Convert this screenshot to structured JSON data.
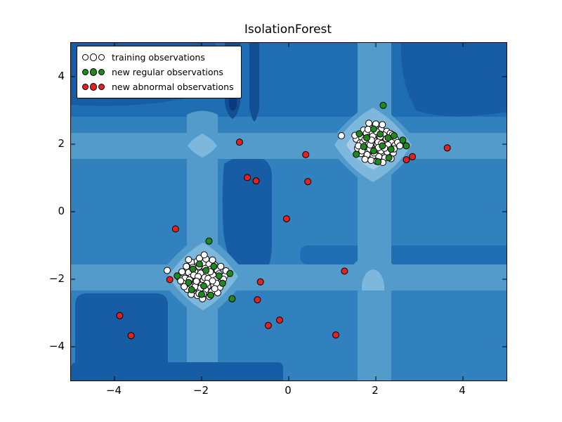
{
  "title": "IsolationForest",
  "legend": {
    "items": [
      {
        "label": "training observations",
        "color": "#ffffff"
      },
      {
        "label": "new regular observations",
        "color": "#1c8a1c"
      },
      {
        "label": "new abnormal observations",
        "color": "#e62020"
      }
    ]
  },
  "marker": {
    "edge_color": "#000000",
    "radius": 4.5
  },
  "chart_data": {
    "type": "scatter",
    "title": "IsolationForest",
    "xlim": [
      -5,
      5
    ],
    "ylim": [
      -5,
      5
    ],
    "xticks": [
      -4,
      -2,
      0,
      2,
      4
    ],
    "yticks": [
      -4,
      -2,
      0,
      2,
      4
    ],
    "xtick_labels": [
      "−4",
      "−2",
      "0",
      "2",
      "4"
    ],
    "ytick_labels": [
      "−4",
      "−2",
      "0",
      "2",
      "4"
    ],
    "grid": false,
    "legend_position": "upper left",
    "background": {
      "kind": "contourf of IsolationForest decision function",
      "colormap": "Blues_r",
      "palette": [
        "#0a3a7e",
        "#114e94",
        "#175da6",
        "#1f6db2",
        "#3081bd",
        "#529bcb",
        "#7db8dc",
        "#a9cfe7",
        "#cfe2f2"
      ],
      "description": "dark blue = low (anomalous) score; pale cross-shaped bands along x≈±2 and y≈±2; lightest diamond cores at the two clusters (2,2) and (−2,−2); darkest stripes near top-center; dark blobs in corners, bottom-left and center-left"
    },
    "series": [
      {
        "name": "training observations",
        "marker_color": "#ffffff",
        "points": [
          [
            1.72,
            2.42
          ],
          [
            1.85,
            2.51
          ],
          [
            1.98,
            2.48
          ],
          [
            2.12,
            2.44
          ],
          [
            2.25,
            2.38
          ],
          [
            1.63,
            2.28
          ],
          [
            1.78,
            2.32
          ],
          [
            1.92,
            2.35
          ],
          [
            2.05,
            2.3
          ],
          [
            2.18,
            2.27
          ],
          [
            2.33,
            2.22
          ],
          [
            2.45,
            2.15
          ],
          [
            1.55,
            2.15
          ],
          [
            1.68,
            2.18
          ],
          [
            1.82,
            2.2
          ],
          [
            1.95,
            2.16
          ],
          [
            2.08,
            2.13
          ],
          [
            2.22,
            2.1
          ],
          [
            2.36,
            2.05
          ],
          [
            1.21,
            2.25
          ],
          [
            1.64,
            2.04
          ],
          [
            1.77,
            2.06
          ],
          [
            1.9,
            2.02
          ],
          [
            2.03,
            1.99
          ],
          [
            2.16,
            1.96
          ],
          [
            2.3,
            1.93
          ],
          [
            2.44,
            1.97
          ],
          [
            1.58,
            1.88
          ],
          [
            1.72,
            1.9
          ],
          [
            1.86,
            1.86
          ],
          [
            1.99,
            1.83
          ],
          [
            2.12,
            1.8
          ],
          [
            2.26,
            1.77
          ],
          [
            2.4,
            1.74
          ],
          [
            1.66,
            1.72
          ],
          [
            1.8,
            1.69
          ],
          [
            1.94,
            1.66
          ],
          [
            2.07,
            1.63
          ],
          [
            2.21,
            1.6
          ],
          [
            2.35,
            1.57
          ],
          [
            1.75,
            1.55
          ],
          [
            1.89,
            1.52
          ],
          [
            2.02,
            1.49
          ],
          [
            2.16,
            1.46
          ],
          [
            1.84,
            2.62
          ],
          [
            2.0,
            2.6
          ],
          [
            2.15,
            2.58
          ],
          [
            1.7,
            2.05
          ],
          [
            2.1,
            2.22
          ],
          [
            1.93,
            2.24
          ],
          [
            2.28,
            1.98
          ],
          [
            1.87,
            1.98
          ],
          [
            2.05,
            2.06
          ],
          [
            1.75,
            2.14
          ],
          [
            2.2,
            1.88
          ],
          [
            1.96,
            1.74
          ],
          [
            2.33,
            2.32
          ],
          [
            1.6,
            1.95
          ],
          [
            2.5,
            2.05
          ],
          [
            2.42,
            1.86
          ],
          [
            1.52,
            2.26
          ],
          [
            2.02,
            2.37
          ],
          [
            1.68,
            1.8
          ],
          [
            2.38,
            2.28
          ],
          [
            2.55,
            1.95
          ],
          [
            1.9,
            2.12
          ],
          [
            2.13,
            2.02
          ],
          [
            1.82,
            2.44
          ],
          [
            2.06,
            1.9
          ],
          [
            2.24,
            2.16
          ],
          [
            -2.23,
            -1.5
          ],
          [
            -2.1,
            -1.47
          ],
          [
            -1.96,
            -1.52
          ],
          [
            -1.83,
            -1.55
          ],
          [
            -1.7,
            -1.58
          ],
          [
            -2.35,
            -1.62
          ],
          [
            -2.2,
            -1.65
          ],
          [
            -2.06,
            -1.62
          ],
          [
            -1.92,
            -1.68
          ],
          [
            -1.78,
            -1.7
          ],
          [
            -1.64,
            -1.73
          ],
          [
            -2.45,
            -1.78
          ],
          [
            -2.3,
            -1.8
          ],
          [
            -2.16,
            -1.77
          ],
          [
            -2.02,
            -1.82
          ],
          [
            -1.88,
            -1.85
          ],
          [
            -1.74,
            -1.88
          ],
          [
            -1.6,
            -1.84
          ],
          [
            -1.47,
            -1.9
          ],
          [
            -2.52,
            -1.95
          ],
          [
            -2.38,
            -1.97
          ],
          [
            -2.24,
            -1.94
          ],
          [
            -2.1,
            -2.0
          ],
          [
            -1.96,
            -2.03
          ],
          [
            -1.82,
            -2.06
          ],
          [
            -1.68,
            -2.02
          ],
          [
            -1.54,
            -2.08
          ],
          [
            -2.42,
            -2.12
          ],
          [
            -2.28,
            -2.15
          ],
          [
            -2.14,
            -2.12
          ],
          [
            -2.0,
            -2.18
          ],
          [
            -1.86,
            -2.21
          ],
          [
            -1.72,
            -2.18
          ],
          [
            -1.58,
            -2.24
          ],
          [
            -2.33,
            -2.3
          ],
          [
            -2.19,
            -2.28
          ],
          [
            -2.05,
            -2.34
          ],
          [
            -1.91,
            -2.31
          ],
          [
            -1.77,
            -2.37
          ],
          [
            -1.63,
            -2.4
          ],
          [
            -2.24,
            -2.45
          ],
          [
            -2.1,
            -2.48
          ],
          [
            -1.96,
            -2.44
          ],
          [
            -1.82,
            -2.51
          ],
          [
            -2.05,
            -1.38
          ],
          [
            -1.9,
            -1.4
          ],
          [
            -1.75,
            -1.43
          ],
          [
            -2.28,
            -2.02
          ],
          [
            -1.93,
            -1.95
          ],
          [
            -2.18,
            -1.88
          ],
          [
            -1.66,
            -2.12
          ],
          [
            -2.08,
            -1.92
          ],
          [
            -1.85,
            -1.98
          ],
          [
            -2.15,
            -2.22
          ],
          [
            -1.75,
            -2.05
          ],
          [
            -2.02,
            -2.26
          ],
          [
            -2.48,
            -2.05
          ],
          [
            -1.5,
            -2.0
          ],
          [
            -1.44,
            -1.75
          ],
          [
            -2.79,
            -1.74
          ],
          [
            -1.98,
            -2.58
          ],
          [
            -1.7,
            -2.28
          ],
          [
            -2.4,
            -2.22
          ],
          [
            -1.56,
            -1.62
          ],
          [
            -2.3,
            -1.42
          ],
          [
            -1.88,
            -2.12
          ],
          [
            -2.12,
            -2.06
          ],
          [
            -1.8,
            -1.78
          ],
          [
            -2.06,
            -2.42
          ],
          [
            -1.94,
            -1.28
          ]
        ]
      },
      {
        "name": "new regular observations",
        "marker_color": "#1c8a1c",
        "points": [
          [
            2.17,
            3.15
          ],
          [
            1.62,
            2.31
          ],
          [
            1.79,
            2.19
          ],
          [
            1.95,
            2.45
          ],
          [
            2.1,
            2.3
          ],
          [
            2.28,
            2.19
          ],
          [
            2.42,
            2.25
          ],
          [
            1.72,
            1.93
          ],
          [
            1.95,
            1.8
          ],
          [
            2.15,
            1.95
          ],
          [
            2.35,
            1.85
          ],
          [
            2.3,
            1.6
          ],
          [
            2.62,
            2.12
          ],
          [
            2.7,
            1.95
          ],
          [
            1.55,
            1.7
          ],
          [
            2.05,
            1.48
          ],
          [
            -1.83,
            -0.87
          ],
          [
            -2.56,
            -1.9
          ],
          [
            -1.35,
            -1.83
          ],
          [
            -1.3,
            -2.58
          ],
          [
            -1.79,
            -2.47
          ],
          [
            -2.23,
            -2.31
          ],
          [
            -2.2,
            -1.7
          ],
          [
            -2.05,
            -1.55
          ],
          [
            -1.9,
            -1.74
          ],
          [
            -2.3,
            -2.1
          ],
          [
            -1.95,
            -2.2
          ],
          [
            -1.6,
            -1.9
          ],
          [
            -2.0,
            -2.45
          ],
          [
            -1.72,
            -1.62
          ],
          [
            -1.52,
            -2.12
          ]
        ]
      },
      {
        "name": "new abnormal observations",
        "marker_color": "#e62020",
        "points": [
          [
            -1.13,
            2.06
          ],
          [
            0.39,
            1.69
          ],
          [
            -0.95,
            1.01
          ],
          [
            -0.75,
            0.91
          ],
          [
            0.44,
            0.89
          ],
          [
            -0.05,
            -0.21
          ],
          [
            -2.6,
            -0.51
          ],
          [
            -2.73,
            -2.01
          ],
          [
            -0.65,
            -2.08
          ],
          [
            -0.72,
            -2.61
          ],
          [
            -0.47,
            -3.37
          ],
          [
            -0.21,
            -3.21
          ],
          [
            1.08,
            -3.65
          ],
          [
            1.28,
            -1.76
          ],
          [
            -3.88,
            -3.08
          ],
          [
            -3.62,
            -3.67
          ],
          [
            2.7,
            1.54
          ],
          [
            2.84,
            1.63
          ],
          [
            3.64,
            1.89
          ]
        ]
      }
    ]
  }
}
